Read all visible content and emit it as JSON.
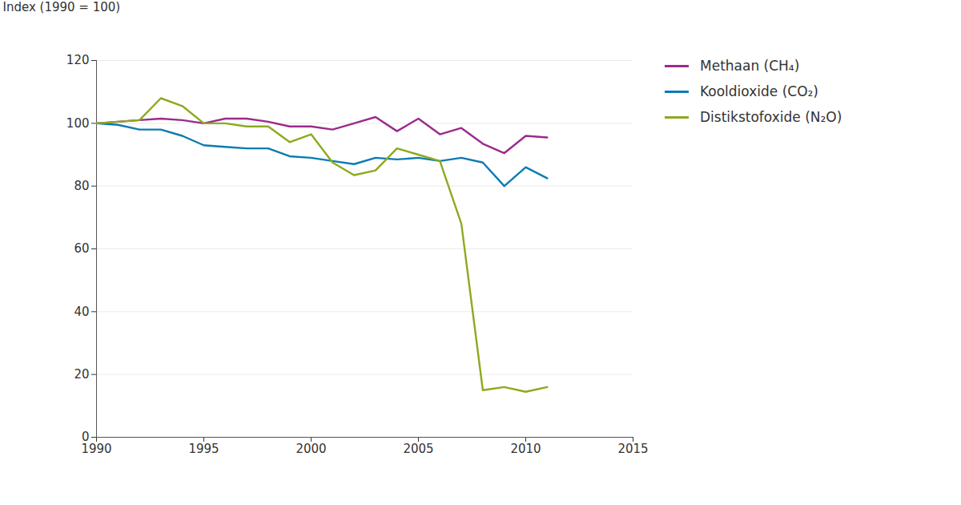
{
  "chart_data": {
    "type": "line",
    "x": [
      1990,
      1991,
      1992,
      1993,
      1994,
      1995,
      1996,
      1997,
      1998,
      1999,
      2000,
      2001,
      2002,
      2003,
      2004,
      2005,
      2006,
      2007,
      2008,
      2009,
      2010,
      2011
    ],
    "series": [
      {
        "name": "Methaan (CH₄)",
        "color": "#9c2a8c",
        "values": [
          100,
          100.5,
          101,
          101.5,
          101,
          100,
          101.5,
          101.5,
          100.5,
          99,
          99,
          98,
          100,
          102,
          97.5,
          101.5,
          96.5,
          98.5,
          93.5,
          90.5,
          96,
          95.5
        ]
      },
      {
        "name": "Kooldioxide (CO₂)",
        "color": "#0a7bb3",
        "values": [
          100,
          99.5,
          98,
          98,
          96,
          93,
          92.5,
          92,
          92,
          89.5,
          89,
          88,
          87,
          89,
          88.5,
          89,
          88,
          89,
          87.5,
          80,
          86,
          82.5
        ]
      },
      {
        "name": "Distikstofoxide (N₂O)",
        "color": "#8caa1e",
        "values": [
          100,
          100.5,
          101,
          108,
          105.5,
          100,
          100,
          99,
          99,
          94,
          96.5,
          87.5,
          83.5,
          85,
          92,
          90,
          88,
          68,
          15,
          16,
          14.5,
          16
        ]
      }
    ],
    "y_label": "Index (1990 = 100)",
    "xlim": [
      1990,
      2015
    ],
    "xticks": [
      1990,
      1995,
      2000,
      2005,
      2010,
      2015
    ],
    "ylim": [
      0,
      120
    ],
    "yticks": [
      0,
      20,
      40,
      60,
      80,
      100,
      120
    ],
    "grid": true,
    "legend": "right"
  }
}
